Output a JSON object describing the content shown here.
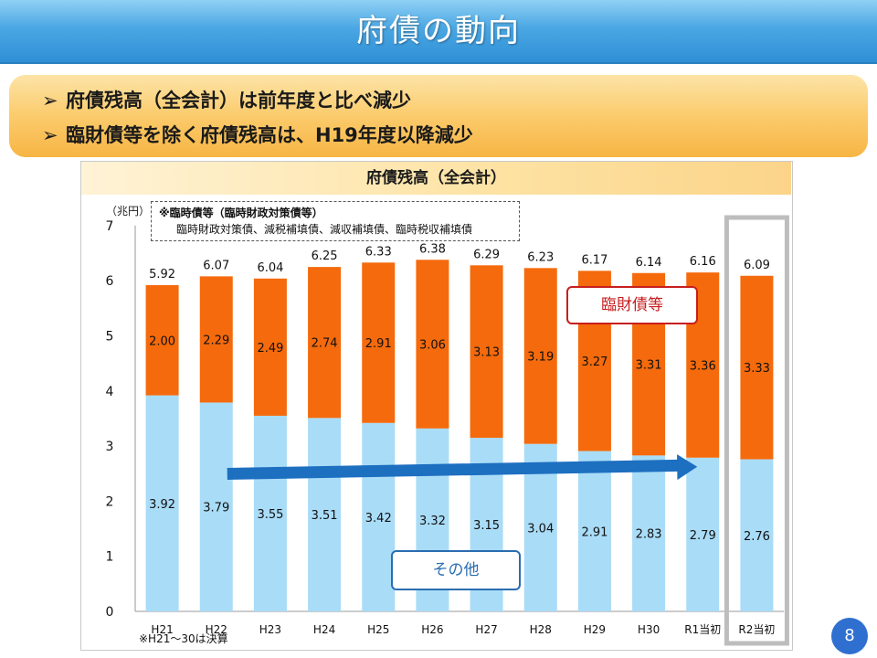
{
  "header": {
    "title": "府債の動向"
  },
  "summary": {
    "bullet_mark": "➢",
    "points": [
      "府債残高（全会計）は前年度と比べ減少",
      "臨財債等を除く府債残高は、H19年度以降減少"
    ]
  },
  "note": {
    "title": "※臨時債等（臨時財政対策債等）",
    "body": "臨時財政対策債、減税補填債、減収補填債、臨時税収補填債"
  },
  "footnote": "※H21〜30は決算",
  "labels": {
    "rinzai": "臨財債等",
    "other": "その他"
  },
  "page_number": "8",
  "colors": {
    "other": "#a9dcf7",
    "rinzai": "#f56a0c",
    "arrow": "#1d6fc0",
    "highlight_box": "#bdbdbd"
  },
  "chart_data": {
    "type": "bar",
    "stacked": true,
    "title": "府債残高（全会計）",
    "ylabel": "（兆円）",
    "ylim": [
      0,
      7
    ],
    "yticks": [
      0,
      1,
      2,
      3,
      4,
      5,
      6,
      7
    ],
    "categories": [
      "H21",
      "H22",
      "H23",
      "H24",
      "H25",
      "H26",
      "H27",
      "H28",
      "H29",
      "H30",
      "R1当初",
      "R2当初"
    ],
    "series": [
      {
        "name": "その他",
        "values": [
          3.92,
          3.79,
          3.55,
          3.51,
          3.42,
          3.32,
          3.15,
          3.04,
          2.91,
          2.83,
          2.79,
          2.76
        ]
      },
      {
        "name": "臨財債等",
        "values": [
          2.0,
          2.29,
          2.49,
          2.74,
          2.91,
          3.06,
          3.13,
          3.19,
          3.27,
          3.31,
          3.36,
          3.33
        ]
      }
    ],
    "totals": [
      5.92,
      6.07,
      6.04,
      6.25,
      6.33,
      6.38,
      6.29,
      6.23,
      6.17,
      6.14,
      6.16,
      6.09
    ],
    "highlight_category": "R2当初",
    "trend_arrow": {
      "from_category": "H22",
      "to_category": "R1当初"
    }
  }
}
